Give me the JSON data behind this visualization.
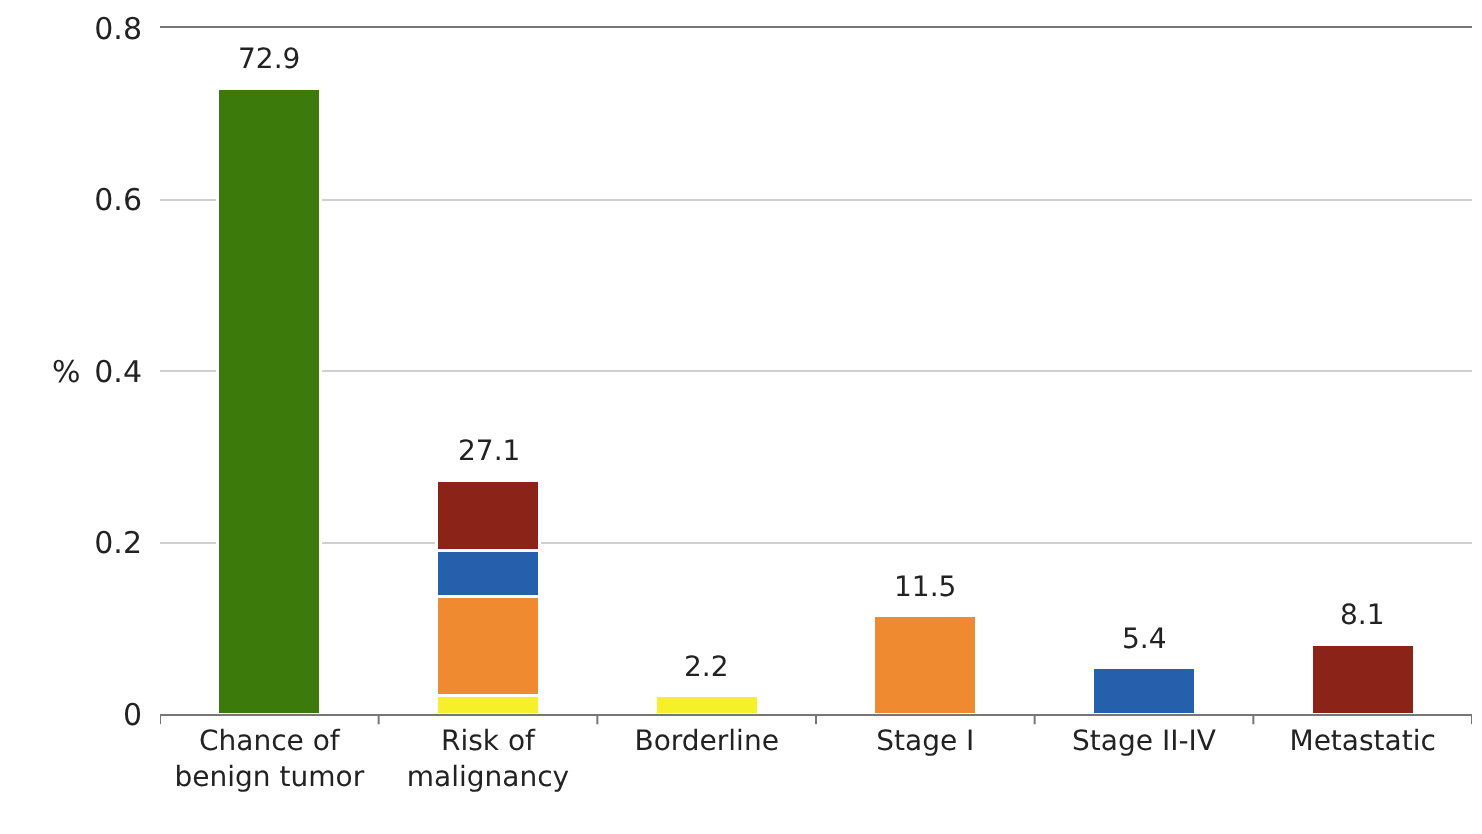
{
  "chart_data": {
    "type": "bar",
    "stacked": true,
    "ylabel": "%",
    "categories": [
      "Chance of\nbenign tumor",
      "Risk of\nmalignancy",
      "Borderline",
      "Stage I",
      "Stage II-IV",
      "Metastatic"
    ],
    "series": [
      {
        "color": "#3b7a0b",
        "values": [
          0.729,
          null,
          null,
          null,
          null,
          null
        ]
      },
      {
        "color": "#f5f02a",
        "values": [
          null,
          0.022,
          0.022,
          null,
          null,
          null
        ]
      },
      {
        "color": "#f08a30",
        "values": [
          null,
          0.115,
          null,
          0.115,
          null,
          null
        ]
      },
      {
        "color": "#2660ad",
        "values": [
          null,
          0.054,
          null,
          null,
          0.054,
          null
        ]
      },
      {
        "color": "#8b2318",
        "values": [
          null,
          0.081,
          null,
          null,
          null,
          0.081
        ]
      }
    ],
    "totals": [
      "72.9",
      "27.1",
      "2.2",
      "11.5",
      "5.4",
      "8.1"
    ],
    "ylim": [
      0,
      0.8
    ],
    "yticks": [
      0,
      0.2,
      0.4,
      0.6,
      0.8
    ],
    "grid": "y"
  }
}
